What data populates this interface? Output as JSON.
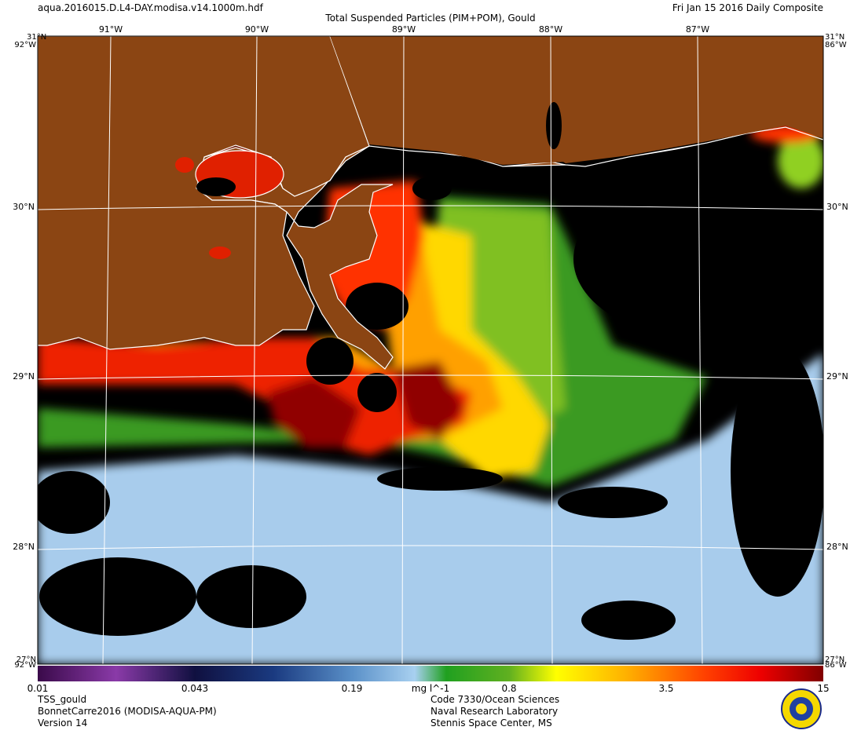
{
  "header": {
    "file": "aqua.2016015.D.L4-DAY.modisa.v14.1000m.hdf",
    "title": "Total Suspended Particles (PIM+POM), Gould",
    "date": "Fri Jan 15 2016 Daily Composite"
  },
  "map": {
    "lat_labels": [
      "31°N",
      "30°N",
      "29°N",
      "28°N"
    ],
    "lon_labels": [
      "91°W",
      "90°W",
      "89°W",
      "88°W",
      "87°W"
    ],
    "corner_labels": {
      "top_left_lat": "31°N",
      "top_left_lon": "92°W",
      "top_right_lat": "31°N",
      "top_right_lon": "86°W",
      "bottom_left_lat": "27°N",
      "bottom_left_lon": "92°W",
      "bottom_right_lat": "27°N",
      "bottom_right_lon": "86°W"
    }
  },
  "colorbar": {
    "labels": [
      "0.01",
      "0.043",
      "0.19",
      "0.8",
      "3.5",
      "15"
    ],
    "units": "mg l^-1"
  },
  "footer": {
    "left": [
      "TSS_gould",
      "BonnetCarre2016 (MODISA-AQUA-PM)",
      "Version 14"
    ],
    "center": [
      "Code 7330/Ocean Sciences",
      "Naval Research Laboratory",
      "Stennis Space Center, MS"
    ]
  }
}
